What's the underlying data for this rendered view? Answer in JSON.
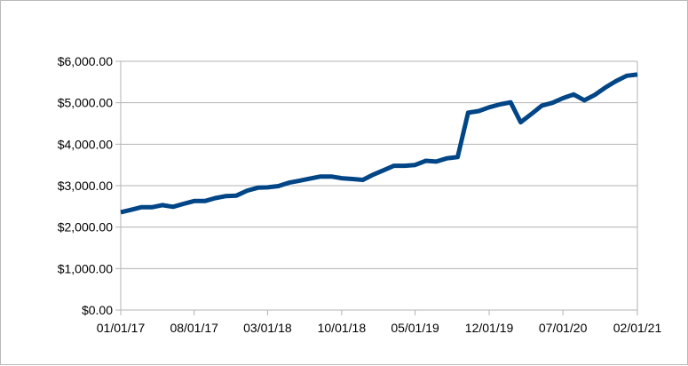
{
  "chart_data": {
    "type": "line",
    "title": "",
    "xlabel": "",
    "ylabel": "",
    "ylim": [
      0,
      6000
    ],
    "yticks": [
      0,
      1000,
      2000,
      3000,
      4000,
      5000,
      6000
    ],
    "ytick_labels": [
      "$0.00",
      "$1,000.00",
      "$2,000.00",
      "$3,000.00",
      "$4,000.00",
      "$5,000.00",
      "$6,000.00"
    ],
    "xlim": [
      "2017-01-01",
      "2021-02-01"
    ],
    "xticks": [
      "2017-01-01",
      "2017-08-01",
      "2018-03-01",
      "2018-10-01",
      "2019-05-01",
      "2019-12-01",
      "2020-07-01",
      "2021-02-01"
    ],
    "xtick_labels": [
      "01/01/17",
      "08/01/17",
      "03/01/18",
      "10/01/18",
      "05/01/19",
      "12/01/19",
      "07/01/20",
      "02/01/21"
    ],
    "grid": true,
    "legend": "none",
    "series_color": "#004586",
    "series": [
      {
        "x": [
          "2017-01-01",
          "2017-02-01",
          "2017-03-01",
          "2017-04-01",
          "2017-05-01",
          "2017-06-01",
          "2017-07-01",
          "2017-08-01",
          "2017-09-01",
          "2017-10-01",
          "2017-11-01",
          "2017-12-01",
          "2018-01-01",
          "2018-02-01",
          "2018-03-01",
          "2018-04-01",
          "2018-05-01",
          "2018-06-01",
          "2018-07-01",
          "2018-08-01",
          "2018-09-01",
          "2018-10-01",
          "2018-11-01",
          "2018-12-01",
          "2019-01-01",
          "2019-02-01",
          "2019-03-01",
          "2019-04-01",
          "2019-05-01",
          "2019-06-01",
          "2019-07-01",
          "2019-08-01",
          "2019-09-01",
          "2019-10-01",
          "2019-11-01",
          "2019-12-01",
          "2020-01-01",
          "2020-02-01",
          "2020-03-01",
          "2020-04-01",
          "2020-05-01",
          "2020-06-01",
          "2020-07-01",
          "2020-08-01",
          "2020-09-01",
          "2020-10-01",
          "2020-11-01",
          "2020-12-01",
          "2021-01-01",
          "2021-02-01"
        ],
        "y": [
          2360,
          2420,
          2480,
          2480,
          2530,
          2490,
          2560,
          2630,
          2630,
          2700,
          2750,
          2760,
          2880,
          2950,
          2960,
          2990,
          3070,
          3120,
          3170,
          3220,
          3220,
          3180,
          3160,
          3140,
          3270,
          3380,
          3480,
          3480,
          3500,
          3600,
          3580,
          3660,
          3690,
          4760,
          4800,
          4890,
          4960,
          5010,
          4530,
          4730,
          4930,
          5000,
          5110,
          5200,
          5060,
          5190,
          5370,
          5520,
          5650,
          5680
        ]
      }
    ]
  }
}
